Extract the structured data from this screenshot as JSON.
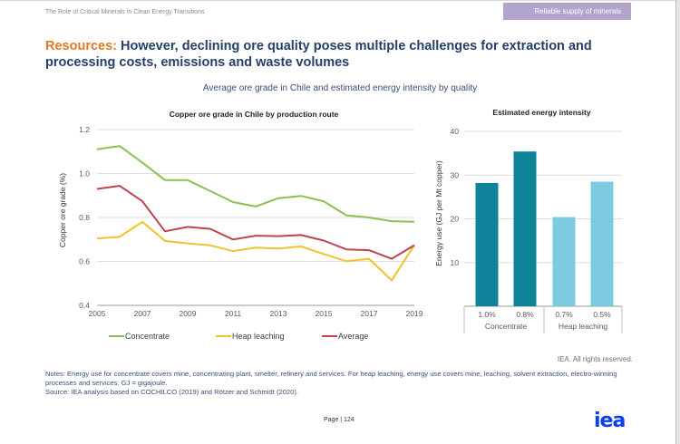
{
  "header": {
    "doc_title": "The Role of Critical Minerals in Clean Energy Transitions",
    "badge": "Reliable supply of minerals"
  },
  "headline": {
    "accent": "Resources:",
    "text": " However, declining ore quality poses multiple challenges for extraction and processing costs, emissions and waste volumes"
  },
  "figure_title": "Average ore grade in Chile and estimated energy intensity by quality",
  "footer": {
    "rights": "IEA. All rights reserved.",
    "notes": "Notes: Energy use for concentrate covers mine, concentrating plant, smelter, refinery and services. For heap leaching, energy use covers mine, leaching, solvent extraction, electro-winning processes and services. GJ = gigajoule.",
    "source": "Source: IEA analysis based on COCHILCO (2019) and Rötzer and Schmidt (2020).",
    "page": "Page | 124",
    "logo": "iea"
  },
  "colors": {
    "concentrate": "#8cc152",
    "heap": "#f2c12e",
    "average": "#c0444f",
    "bar_dark": "#0e8398",
    "bar_light": "#7ccbe0",
    "badge": "#b3a4cc",
    "accent": "#e07a23",
    "logo": "#0a3ff0"
  },
  "chart_data": [
    {
      "type": "line",
      "title": "Copper ore grade in Chile by production route",
      "xlabel": "",
      "ylabel": "Copper ore grade (%)",
      "x": [
        2005,
        2006,
        2007,
        2008,
        2009,
        2010,
        2011,
        2012,
        2013,
        2014,
        2015,
        2016,
        2017,
        2018,
        2019
      ],
      "x_ticks": [
        "2005",
        "2007",
        "2009",
        "2011",
        "2013",
        "2015",
        "2017",
        "2019"
      ],
      "y_ticks": [
        "0.4",
        "0.6",
        "0.8",
        "1.0",
        "1.2"
      ],
      "ylim": [
        0.4,
        1.2
      ],
      "grid": true,
      "legend": "bottom",
      "series": [
        {
          "name": "Concentrate",
          "values": [
            1.11,
            1.125,
            1.05,
            0.97,
            0.97,
            0.92,
            0.87,
            0.85,
            0.888,
            0.898,
            0.874,
            0.81,
            0.8,
            0.783,
            0.78
          ]
        },
        {
          "name": "Heap leaching",
          "values": [
            0.704,
            0.712,
            0.78,
            0.693,
            0.682,
            0.673,
            0.647,
            0.663,
            0.659,
            0.668,
            0.634,
            0.601,
            0.612,
            0.514,
            0.674
          ]
        },
        {
          "name": "Average",
          "values": [
            0.93,
            0.944,
            0.874,
            0.737,
            0.757,
            0.748,
            0.7,
            0.717,
            0.715,
            0.72,
            0.695,
            0.655,
            0.651,
            0.612,
            0.674
          ]
        }
      ]
    },
    {
      "type": "bar",
      "title": "Estimated energy intensity",
      "ylabel": "Energy use (GJ per Mt copper)",
      "categories": [
        "1.0%",
        "0.8%",
        "0.7%",
        "0.5%"
      ],
      "groups": [
        {
          "name": "Concentrate",
          "categories": [
            "1.0%",
            "0.8%"
          ]
        },
        {
          "name": "Heap leaching",
          "categories": [
            "0.7%",
            "0.5%"
          ]
        }
      ],
      "values": [
        28.2,
        35.4,
        20.4,
        28.5
      ],
      "y_ticks": [
        "10",
        "20",
        "30",
        "40"
      ],
      "ylim": [
        0,
        40
      ],
      "grid": true
    }
  ]
}
